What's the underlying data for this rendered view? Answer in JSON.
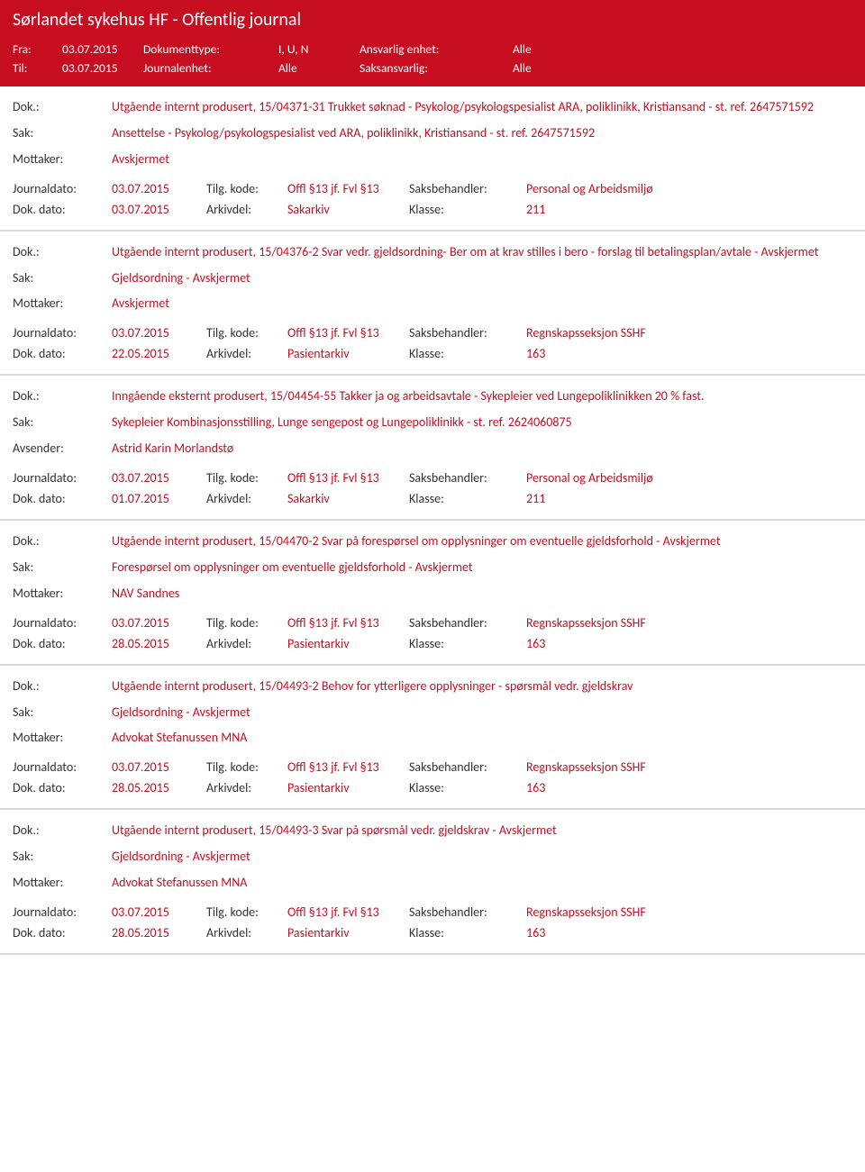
{
  "header": {
    "title": "Sørlandet sykehus HF - Offentlig journal"
  },
  "filters": {
    "fra_label": "Fra:",
    "fra_value": "03.07.2015",
    "til_label": "Til:",
    "til_value": "03.07.2015",
    "doktype_label": "Dokumenttype:",
    "doktype_value": "I, U, N",
    "journalenhet_label": "Journalenhet:",
    "journalenhet_value": "Alle",
    "ansvarlig_label": "Ansvarlig enhet:",
    "ansvarlig_value": "Alle",
    "saksansvarlig_label": "Saksansvarlig:",
    "saksansvarlig_value": "Alle"
  },
  "labels": {
    "dok": "Dok.:",
    "sak": "Sak:",
    "mottaker": "Mottaker:",
    "avsender": "Avsender:",
    "journaldato": "Journaldato:",
    "tilg": "Tilg. kode:",
    "saksbehandler": "Saksbehandler:",
    "dokdato": "Dok. dato:",
    "arkivdel": "Arkivdel:",
    "klasse": "Klasse:"
  },
  "entries": [
    {
      "dok": "Utgående internt produsert, 15/04371-31 Trukket søknad - Psykolog/psykologspesialist ARA, poliklinikk, Kristiansand - st. ref. 2647571592",
      "sak": "Ansettelse - Psykolog/psykologspesialist ved ARA, poliklinikk, Kristiansand - st. ref. 2647571592",
      "party_label": "Mottaker:",
      "party_value": "Avskjermet",
      "journaldato": "03.07.2015",
      "tilg": "Offl §13 jf. Fvl §13",
      "saksbehandler": "Personal og Arbeidsmiljø",
      "dokdato": "03.07.2015",
      "arkivdel": "Sakarkiv",
      "klasse": "211"
    },
    {
      "dok": "Utgående internt produsert, 15/04376-2 Svar vedr. gjeldsordning- Ber om at krav stilles i bero - forslag til betalingsplan/avtale - Avskjermet",
      "sak": "Gjeldsordning - Avskjermet",
      "party_label": "Mottaker:",
      "party_value": "Avskjermet",
      "journaldato": "03.07.2015",
      "tilg": "Offl §13 jf. Fvl §13",
      "saksbehandler": "Regnskapsseksjon SSHF",
      "dokdato": "22.05.2015",
      "arkivdel": "Pasientarkiv",
      "klasse": "163"
    },
    {
      "dok": "Inngående eksternt produsert, 15/04454-55 Takker ja og arbeidsavtale - Sykepleier ved Lungepoliklinikken 20 % fast.",
      "sak": "Sykepleier Kombinasjonsstilling, Lunge sengepost og Lungepoliklinikk - st. ref. 2624060875",
      "party_label": "Avsender:",
      "party_value": "Astrid Karin Morlandstø",
      "journaldato": "03.07.2015",
      "tilg": "Offl §13 jf. Fvl §13",
      "saksbehandler": "Personal og Arbeidsmiljø",
      "dokdato": "01.07.2015",
      "arkivdel": "Sakarkiv",
      "klasse": "211"
    },
    {
      "dok": "Utgående internt produsert, 15/04470-2 Svar på forespørsel om opplysninger om eventuelle gjeldsforhold - Avskjermet",
      "sak": "Forespørsel om opplysninger om eventuelle gjeldsforhold - Avskjermet",
      "party_label": "Mottaker:",
      "party_value": "NAV Sandnes",
      "journaldato": "03.07.2015",
      "tilg": "Offl §13 jf. Fvl §13",
      "saksbehandler": "Regnskapsseksjon SSHF",
      "dokdato": "28.05.2015",
      "arkivdel": "Pasientarkiv",
      "klasse": "163"
    },
    {
      "dok": "Utgående internt produsert, 15/04493-2 Behov for ytterligere opplysninger - spørsmål vedr. gjeldskrav",
      "sak": "Gjeldsordning - Avskjermet",
      "party_label": "Mottaker:",
      "party_value": "Advokat Stefanussen MNA",
      "journaldato": "03.07.2015",
      "tilg": "Offl §13 jf. Fvl §13",
      "saksbehandler": "Regnskapsseksjon SSHF",
      "dokdato": "28.05.2015",
      "arkivdel": "Pasientarkiv",
      "klasse": "163"
    },
    {
      "dok": "Utgående internt produsert, 15/04493-3 Svar på spørsmål vedr. gjeldskrav - Avskjermet",
      "sak": "Gjeldsordning - Avskjermet",
      "party_label": "Mottaker:",
      "party_value": "Advokat Stefanussen MNA",
      "journaldato": "03.07.2015",
      "tilg": "Offl §13 jf. Fvl §13",
      "saksbehandler": "Regnskapsseksjon SSHF",
      "dokdato": "28.05.2015",
      "arkivdel": "Pasientarkiv",
      "klasse": "163"
    }
  ]
}
